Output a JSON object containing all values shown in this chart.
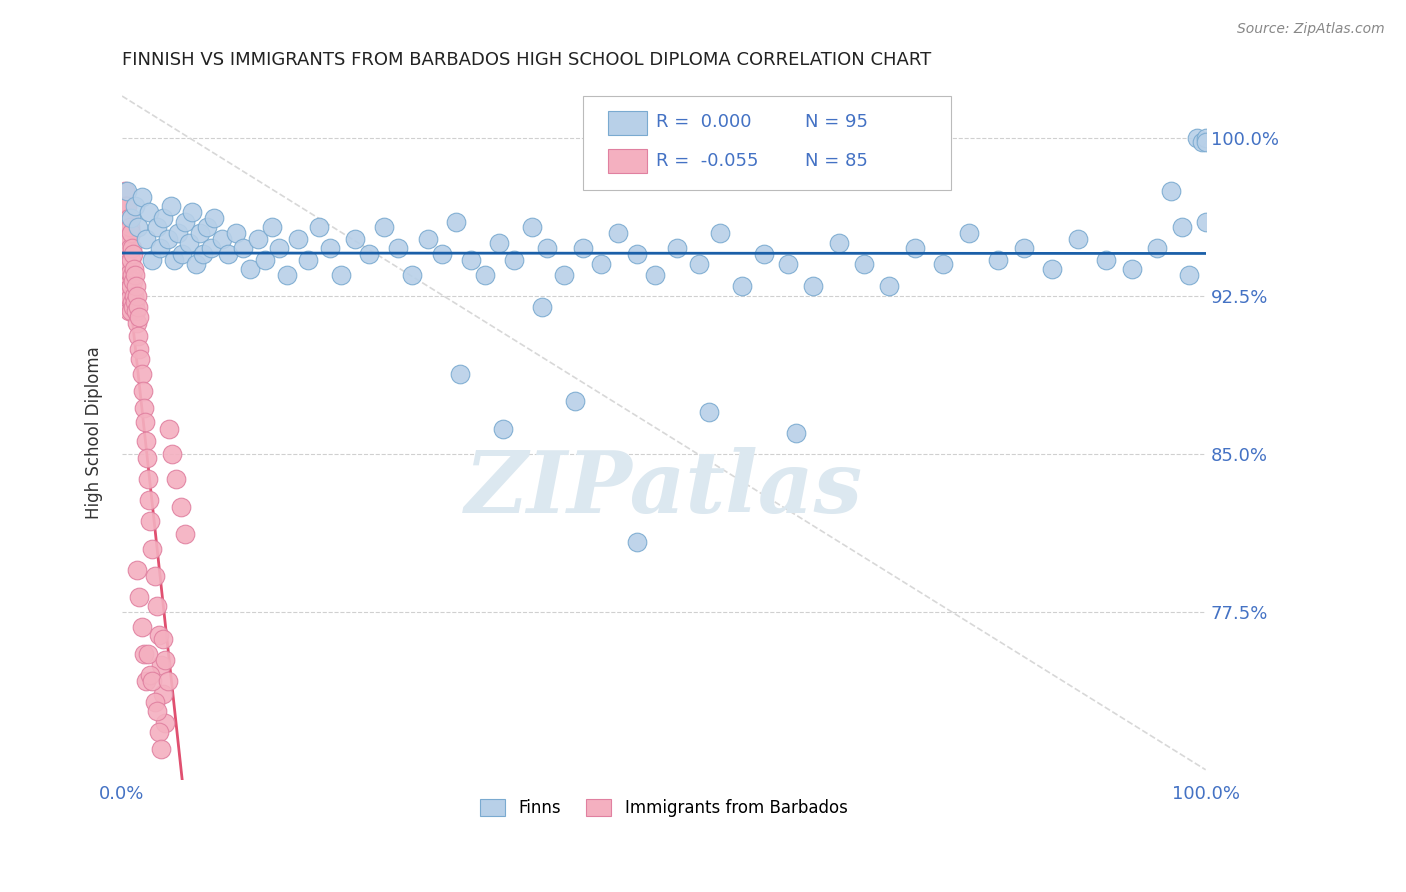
{
  "title": "FINNISH VS IMMIGRANTS FROM BARBADOS HIGH SCHOOL DIPLOMA CORRELATION CHART",
  "source": "Source: ZipAtlas.com",
  "ylabel": "High School Diploma",
  "yticks": [
    0.775,
    0.85,
    0.925,
    1.0
  ],
  "ytick_labels": [
    "77.5%",
    "85.0%",
    "92.5%",
    "100.0%"
  ],
  "xmin": 0.0,
  "xmax": 1.0,
  "ymin": 0.695,
  "ymax": 1.025,
  "legend_entries": [
    {
      "label": "Finns",
      "R": "0.000",
      "N": "95",
      "color": "#b8d0e8"
    },
    {
      "label": "Immigrants from Barbados",
      "R": "-0.055",
      "N": "85",
      "color": "#f4b0c0"
    }
  ],
  "finn_color": "#b8d0e8",
  "finn_edge_color": "#7aaad0",
  "barbados_color": "#f4b0c0",
  "barbados_edge_color": "#e080a0",
  "finn_trend_color": "#1a5fa8",
  "barbados_trend_color": "#e05070",
  "reference_line_color": "#d8d8d8",
  "watermark_color": "#dce8f0",
  "grid_color": "#d0d0d0",
  "axis_label_color": "#4472c4",
  "title_color": "#222222",
  "finns_x": [
    0.005,
    0.008,
    0.012,
    0.015,
    0.018,
    0.022,
    0.025,
    0.028,
    0.032,
    0.035,
    0.038,
    0.042,
    0.045,
    0.048,
    0.052,
    0.055,
    0.058,
    0.062,
    0.065,
    0.068,
    0.072,
    0.075,
    0.078,
    0.082,
    0.085,
    0.092,
    0.098,
    0.105,
    0.112,
    0.118,
    0.125,
    0.132,
    0.138,
    0.145,
    0.152,
    0.162,
    0.172,
    0.182,
    0.192,
    0.202,
    0.215,
    0.228,
    0.242,
    0.255,
    0.268,
    0.282,
    0.295,
    0.308,
    0.322,
    0.335,
    0.348,
    0.362,
    0.378,
    0.392,
    0.408,
    0.425,
    0.442,
    0.458,
    0.475,
    0.492,
    0.512,
    0.532,
    0.552,
    0.572,
    0.592,
    0.615,
    0.638,
    0.662,
    0.685,
    0.708,
    0.732,
    0.758,
    0.782,
    0.808,
    0.832,
    0.858,
    0.882,
    0.908,
    0.932,
    0.955,
    0.968,
    0.978,
    0.985,
    0.992,
    0.997,
    1.0,
    1.0,
    1.0,
    0.352,
    0.418,
    0.312,
    0.475,
    0.388,
    0.542,
    0.622
  ],
  "finns_y": [
    0.975,
    0.962,
    0.968,
    0.958,
    0.972,
    0.952,
    0.965,
    0.942,
    0.958,
    0.948,
    0.962,
    0.952,
    0.968,
    0.942,
    0.955,
    0.945,
    0.96,
    0.95,
    0.965,
    0.94,
    0.955,
    0.945,
    0.958,
    0.948,
    0.962,
    0.952,
    0.945,
    0.955,
    0.948,
    0.938,
    0.952,
    0.942,
    0.958,
    0.948,
    0.935,
    0.952,
    0.942,
    0.958,
    0.948,
    0.935,
    0.952,
    0.945,
    0.958,
    0.948,
    0.935,
    0.952,
    0.945,
    0.96,
    0.942,
    0.935,
    0.95,
    0.942,
    0.958,
    0.948,
    0.935,
    0.948,
    0.94,
    0.955,
    0.945,
    0.935,
    0.948,
    0.94,
    0.955,
    0.93,
    0.945,
    0.94,
    0.93,
    0.95,
    0.94,
    0.93,
    0.948,
    0.94,
    0.955,
    0.942,
    0.948,
    0.938,
    0.952,
    0.942,
    0.938,
    0.948,
    0.975,
    0.958,
    0.935,
    1.0,
    0.998,
    1.0,
    0.998,
    0.96,
    0.862,
    0.875,
    0.888,
    0.808,
    0.92,
    0.87,
    0.86
  ],
  "barbados_x": [
    0.003,
    0.003,
    0.003,
    0.003,
    0.003,
    0.003,
    0.004,
    0.004,
    0.004,
    0.004,
    0.004,
    0.004,
    0.005,
    0.005,
    0.005,
    0.005,
    0.005,
    0.006,
    0.006,
    0.006,
    0.006,
    0.006,
    0.007,
    0.007,
    0.007,
    0.007,
    0.008,
    0.008,
    0.008,
    0.008,
    0.009,
    0.009,
    0.009,
    0.01,
    0.01,
    0.01,
    0.011,
    0.011,
    0.012,
    0.012,
    0.013,
    0.013,
    0.014,
    0.014,
    0.015,
    0.015,
    0.016,
    0.016,
    0.017,
    0.018,
    0.019,
    0.02,
    0.021,
    0.022,
    0.023,
    0.024,
    0.025,
    0.026,
    0.028,
    0.03,
    0.032,
    0.034,
    0.036,
    0.038,
    0.04,
    0.043,
    0.046,
    0.05,
    0.054,
    0.058,
    0.014,
    0.016,
    0.018,
    0.02,
    0.022,
    0.024,
    0.026,
    0.028,
    0.03,
    0.032,
    0.034,
    0.036,
    0.038,
    0.04,
    0.042
  ],
  "barbados_y": [
    0.975,
    0.968,
    0.96,
    0.952,
    0.942,
    0.93,
    0.968,
    0.96,
    0.952,
    0.942,
    0.932,
    0.922,
    0.968,
    0.96,
    0.952,
    0.94,
    0.928,
    0.962,
    0.952,
    0.94,
    0.928,
    0.918,
    0.958,
    0.948,
    0.936,
    0.924,
    0.955,
    0.942,
    0.93,
    0.918,
    0.948,
    0.935,
    0.922,
    0.945,
    0.932,
    0.92,
    0.938,
    0.925,
    0.935,
    0.922,
    0.93,
    0.918,
    0.925,
    0.912,
    0.92,
    0.906,
    0.915,
    0.9,
    0.895,
    0.888,
    0.88,
    0.872,
    0.865,
    0.856,
    0.848,
    0.838,
    0.828,
    0.818,
    0.805,
    0.792,
    0.778,
    0.764,
    0.75,
    0.736,
    0.722,
    0.862,
    0.85,
    0.838,
    0.825,
    0.812,
    0.795,
    0.782,
    0.768,
    0.755,
    0.742,
    0.755,
    0.745,
    0.742,
    0.732,
    0.728,
    0.718,
    0.71,
    0.762,
    0.752,
    0.742
  ]
}
